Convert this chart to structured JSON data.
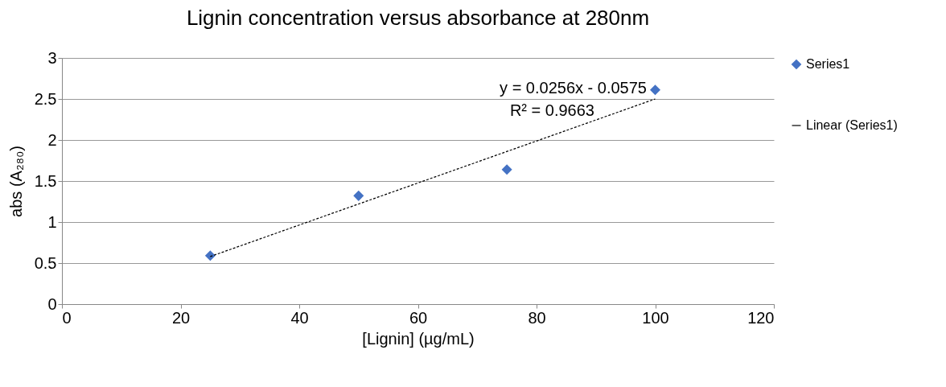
{
  "chart_data": {
    "type": "scatter",
    "title": "Lignin concentration versus absorbance at 280nm",
    "xlabel": "[Lignin] (µg/mL)",
    "ylabel": "abs (A₂₈₀)",
    "xlim": [
      0,
      120
    ],
    "xticks": [
      0,
      20,
      40,
      60,
      80,
      100,
      120
    ],
    "ylim": [
      0,
      3
    ],
    "yticks": [
      0,
      0.5,
      1,
      1.5,
      2,
      2.5,
      3
    ],
    "grid": "y",
    "legend": "right",
    "annotations": [
      "y = 0.0256x - 0.0575",
      "R² = 0.9663"
    ],
    "series": [
      {
        "name": "Series1",
        "marker": "diamond",
        "color": "#4472c4",
        "x": [
          25,
          50,
          75,
          100
        ],
        "values": [
          0.59,
          1.32,
          1.64,
          2.61
        ]
      },
      {
        "name": "Linear (Series1)",
        "type": "line",
        "marker": "none",
        "color": "#000000",
        "line_style": "dashed",
        "x": [
          25,
          100
        ],
        "values": [
          0.58,
          2.5
        ]
      }
    ]
  }
}
